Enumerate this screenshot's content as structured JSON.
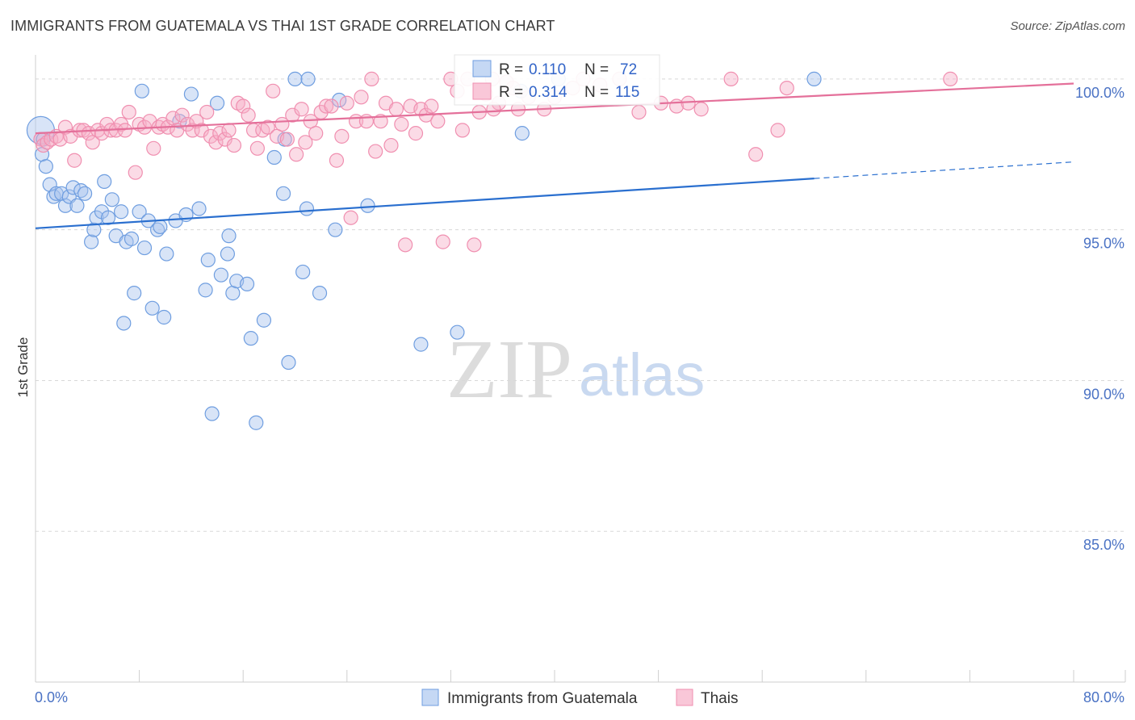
{
  "title": "IMMIGRANTS FROM GUATEMALA VS THAI 1ST GRADE CORRELATION CHART",
  "source": "Source: ZipAtlas.com",
  "watermark": {
    "zip": "ZIP",
    "atlas": "atlas"
  },
  "colors": {
    "blue": "#6f9ee0",
    "blue_line": "#2a6fcf",
    "pink": "#f08fb0",
    "pink_line": "#e4709a",
    "grid": "#d8d8d8",
    "tick_label": "#4a72c4"
  },
  "chart_data": {
    "type": "scatter",
    "title": "IMMIGRANTS FROM GUATEMALA VS THAI 1ST GRADE CORRELATION CHART",
    "xlabel": "",
    "ylabel": "1st Grade",
    "xlim": [
      0,
      80
    ],
    "ylim": [
      80.0,
      100.8
    ],
    "x_tick_labels": [
      {
        "value": 0,
        "label": "0.0%"
      },
      {
        "value": 80,
        "label": "80.0%"
      }
    ],
    "y_tick_labels": [
      {
        "value": 100,
        "label": "100.0%"
      },
      {
        "value": 95,
        "label": "95.0%"
      },
      {
        "value": 90,
        "label": "90.0%"
      },
      {
        "value": 85,
        "label": "85.0%"
      }
    ],
    "legend": {
      "position": "top-center",
      "rows": [
        {
          "r_label": "R =",
          "r_value": "0.110",
          "n_label": "N =",
          "n_value": "72"
        },
        {
          "r_label": "R =",
          "r_value": "0.314",
          "n_label": "N =",
          "n_value": "115"
        }
      ]
    },
    "series": [
      {
        "name": "Immigrants from Guatemala",
        "color": "#6f9ee0",
        "trend": {
          "x0": 0,
          "y0": 95.05,
          "x1": 60,
          "y1": 96.7,
          "dashed_to_x": 80,
          "dashed_to_y": 97.25
        },
        "points": [
          [
            0.4,
            98.3
          ],
          [
            0.5,
            97.5
          ],
          [
            0.6,
            98.0
          ],
          [
            0.8,
            97.1
          ],
          [
            1.1,
            96.5
          ],
          [
            1.4,
            96.1
          ],
          [
            1.6,
            96.2
          ],
          [
            2.0,
            96.2
          ],
          [
            2.3,
            95.8
          ],
          [
            2.6,
            96.1
          ],
          [
            2.9,
            96.4
          ],
          [
            3.2,
            95.8
          ],
          [
            3.5,
            96.3
          ],
          [
            3.8,
            96.2
          ],
          [
            4.3,
            94.6
          ],
          [
            4.5,
            95.0
          ],
          [
            4.7,
            95.4
          ],
          [
            5.1,
            95.6
          ],
          [
            5.3,
            96.6
          ],
          [
            5.6,
            95.4
          ],
          [
            5.9,
            96.0
          ],
          [
            6.2,
            94.8
          ],
          [
            6.6,
            95.6
          ],
          [
            7.0,
            94.6
          ],
          [
            7.4,
            94.7
          ],
          [
            7.6,
            92.9
          ],
          [
            8.0,
            95.6
          ],
          [
            8.4,
            94.4
          ],
          [
            8.2,
            99.6
          ],
          [
            8.7,
            95.3
          ],
          [
            9.0,
            92.4
          ],
          [
            9.4,
            95.0
          ],
          [
            9.6,
            95.1
          ],
          [
            9.9,
            92.1
          ],
          [
            10.1,
            94.2
          ],
          [
            10.8,
            95.3
          ],
          [
            11.1,
            98.6
          ],
          [
            11.6,
            95.5
          ],
          [
            12.0,
            99.5
          ],
          [
            12.6,
            95.7
          ],
          [
            13.1,
            93.0
          ],
          [
            13.3,
            94.0
          ],
          [
            13.6,
            88.9
          ],
          [
            14.0,
            99.2
          ],
          [
            14.3,
            93.5
          ],
          [
            14.8,
            94.2
          ],
          [
            14.9,
            94.8
          ],
          [
            15.2,
            92.9
          ],
          [
            15.5,
            93.3
          ],
          [
            16.3,
            93.2
          ],
          [
            16.6,
            91.4
          ],
          [
            17.0,
            88.6
          ],
          [
            17.6,
            92.0
          ],
          [
            18.4,
            97.4
          ],
          [
            19.1,
            96.2
          ],
          [
            19.5,
            90.6
          ],
          [
            19.2,
            98.0
          ],
          [
            20.0,
            100.0
          ],
          [
            20.6,
            93.6
          ],
          [
            20.9,
            95.7
          ],
          [
            21.0,
            100.0
          ],
          [
            21.9,
            92.9
          ],
          [
            23.1,
            95.0
          ],
          [
            23.4,
            99.3
          ],
          [
            25.6,
            95.8
          ],
          [
            29.7,
            91.2
          ],
          [
            32.5,
            91.6
          ],
          [
            37.5,
            98.2
          ],
          [
            37.4,
            99.6
          ],
          [
            40.3,
            100.0
          ],
          [
            60.0,
            100.0
          ],
          [
            6.8,
            91.9
          ]
        ]
      },
      {
        "name": "Thais",
        "color": "#f08fb0",
        "trend": {
          "x0": 0,
          "y0": 98.2,
          "x1": 80,
          "y1": 99.85
        },
        "points": [
          [
            0.4,
            98.0
          ],
          [
            0.6,
            97.8
          ],
          [
            0.9,
            97.9
          ],
          [
            1.2,
            98.0
          ],
          [
            1.6,
            98.1
          ],
          [
            1.9,
            98.0
          ],
          [
            2.3,
            98.4
          ],
          [
            2.7,
            98.1
          ],
          [
            3.0,
            97.3
          ],
          [
            3.4,
            98.3
          ],
          [
            3.7,
            98.3
          ],
          [
            4.1,
            98.2
          ],
          [
            4.4,
            97.9
          ],
          [
            4.8,
            98.3
          ],
          [
            5.1,
            98.2
          ],
          [
            5.5,
            98.5
          ],
          [
            5.8,
            98.3
          ],
          [
            6.2,
            98.3
          ],
          [
            6.6,
            98.5
          ],
          [
            6.9,
            98.3
          ],
          [
            7.2,
            98.9
          ],
          [
            7.7,
            96.9
          ],
          [
            8.0,
            98.5
          ],
          [
            8.4,
            98.4
          ],
          [
            8.8,
            98.6
          ],
          [
            9.1,
            97.7
          ],
          [
            9.5,
            98.4
          ],
          [
            9.8,
            98.5
          ],
          [
            10.2,
            98.4
          ],
          [
            10.6,
            98.7
          ],
          [
            10.9,
            98.3
          ],
          [
            11.3,
            98.8
          ],
          [
            11.7,
            98.5
          ],
          [
            12.1,
            98.3
          ],
          [
            12.4,
            98.6
          ],
          [
            12.8,
            98.3
          ],
          [
            13.2,
            98.9
          ],
          [
            13.5,
            98.1
          ],
          [
            13.9,
            97.9
          ],
          [
            14.2,
            98.2
          ],
          [
            14.6,
            98.0
          ],
          [
            14.9,
            98.3
          ],
          [
            15.3,
            97.8
          ],
          [
            15.6,
            99.2
          ],
          [
            16.0,
            99.1
          ],
          [
            16.4,
            98.8
          ],
          [
            16.8,
            98.3
          ],
          [
            17.1,
            97.7
          ],
          [
            17.5,
            98.3
          ],
          [
            17.9,
            98.4
          ],
          [
            18.3,
            99.6
          ],
          [
            18.6,
            98.1
          ],
          [
            19.0,
            98.5
          ],
          [
            19.4,
            98.0
          ],
          [
            19.8,
            98.8
          ],
          [
            20.1,
            97.5
          ],
          [
            20.5,
            99.0
          ],
          [
            20.8,
            97.9
          ],
          [
            21.2,
            98.6
          ],
          [
            21.6,
            98.2
          ],
          [
            22.0,
            98.9
          ],
          [
            22.4,
            99.1
          ],
          [
            22.8,
            99.1
          ],
          [
            23.2,
            97.3
          ],
          [
            23.6,
            98.1
          ],
          [
            24.0,
            99.2
          ],
          [
            24.3,
            95.4
          ],
          [
            24.7,
            98.6
          ],
          [
            25.1,
            99.4
          ],
          [
            25.5,
            98.6
          ],
          [
            25.9,
            100.0
          ],
          [
            26.2,
            97.6
          ],
          [
            26.6,
            98.6
          ],
          [
            27.0,
            99.2
          ],
          [
            27.4,
            97.8
          ],
          [
            27.8,
            99.0
          ],
          [
            28.2,
            98.5
          ],
          [
            28.5,
            94.5
          ],
          [
            28.9,
            99.1
          ],
          [
            29.3,
            98.2
          ],
          [
            29.7,
            99.0
          ],
          [
            30.1,
            98.8
          ],
          [
            30.5,
            99.1
          ],
          [
            31.0,
            98.6
          ],
          [
            31.4,
            94.6
          ],
          [
            32.0,
            100.0
          ],
          [
            32.5,
            99.6
          ],
          [
            32.9,
            98.3
          ],
          [
            33.3,
            100.0
          ],
          [
            33.8,
            94.5
          ],
          [
            34.2,
            98.9
          ],
          [
            34.7,
            99.5
          ],
          [
            35.2,
            100.0
          ],
          [
            35.7,
            99.2
          ],
          [
            36.3,
            99.9
          ],
          [
            36.8,
            99.7
          ],
          [
            37.2,
            99.0
          ],
          [
            38.0,
            99.4
          ],
          [
            39.2,
            99.0
          ],
          [
            40.0,
            99.4
          ],
          [
            41.4,
            99.7
          ],
          [
            42.2,
            100.0
          ],
          [
            43.5,
            99.8
          ],
          [
            45.0,
            100.0
          ],
          [
            46.5,
            98.9
          ],
          [
            48.2,
            99.2
          ],
          [
            49.4,
            99.1
          ],
          [
            50.3,
            99.2
          ],
          [
            51.3,
            99.0
          ],
          [
            53.6,
            100.0
          ],
          [
            55.5,
            97.5
          ],
          [
            57.2,
            98.3
          ],
          [
            57.9,
            99.7
          ],
          [
            70.5,
            100.0
          ],
          [
            35.3,
            99.0
          ]
        ]
      }
    ]
  },
  "bottom_legend": [
    {
      "label": "Immigrants from Guatemala",
      "swatch": "blue"
    },
    {
      "label": "Thais",
      "swatch": "pink"
    }
  ]
}
